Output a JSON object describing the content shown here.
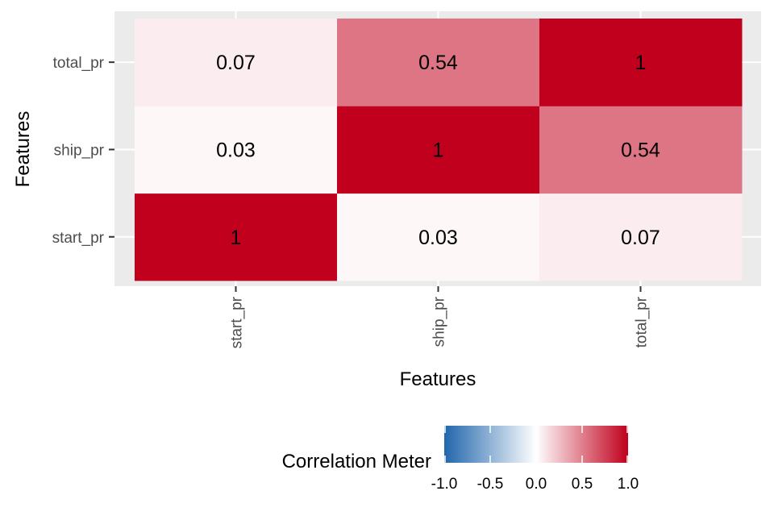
{
  "chart_data": {
    "type": "heatmap",
    "x_categories": [
      "start_pr",
      "ship_pr",
      "total_pr"
    ],
    "y_categories": [
      "start_pr",
      "ship_pr",
      "total_pr"
    ],
    "matrix": [
      [
        1,
        0.03,
        0.07
      ],
      [
        0.03,
        1,
        0.54
      ],
      [
        0.07,
        0.54,
        1
      ]
    ],
    "cell_labels": [
      [
        "1",
        "0.03",
        "0.07"
      ],
      [
        "0.03",
        "1",
        "0.54"
      ],
      [
        "0.07",
        "0.54",
        "1"
      ]
    ],
    "xlabel": "Features",
    "ylabel": "Features",
    "legend": {
      "title": "Correlation Meter",
      "placement": "bottom",
      "range": [
        -1,
        1
      ],
      "ticks": [
        -1,
        -0.5,
        0,
        0.5,
        1
      ],
      "tick_labels": [
        "-1.0",
        "-0.5",
        "0.0",
        "0.5",
        "1.0"
      ]
    },
    "colors": {
      "low": "#2166ac",
      "mid": "#ffffff",
      "high": "#c0001c",
      "panel_background": "#ebebeb",
      "gridline": "#ffffff"
    },
    "grid": true
  }
}
